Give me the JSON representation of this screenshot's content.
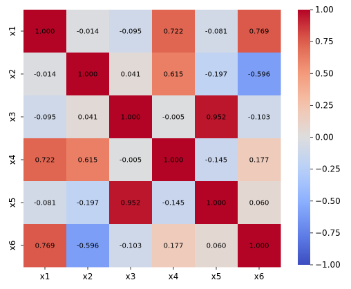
{
  "chart_data": {
    "type": "heatmap",
    "title": "",
    "xlabel": "",
    "ylabel": "",
    "x_categories": [
      "x1",
      "x2",
      "x3",
      "x4",
      "x5",
      "x6"
    ],
    "y_categories": [
      "x1",
      "x2",
      "x3",
      "x4",
      "x5",
      "x6"
    ],
    "values": [
      [
        1.0,
        -0.014,
        -0.095,
        0.722,
        -0.081,
        0.769
      ],
      [
        -0.014,
        1.0,
        0.041,
        0.615,
        -0.197,
        -0.596
      ],
      [
        -0.095,
        0.041,
        1.0,
        -0.005,
        0.952,
        -0.103
      ],
      [
        0.722,
        0.615,
        -0.005,
        1.0,
        -0.145,
        0.177
      ],
      [
        -0.081,
        -0.197,
        0.952,
        -0.145,
        1.0,
        0.06
      ],
      [
        0.769,
        -0.596,
        -0.103,
        0.177,
        0.06,
        1.0
      ]
    ],
    "value_format": "3 decimals",
    "colormap": "coolwarm",
    "vmin": -1.0,
    "vmax": 1.0,
    "colorbar": {
      "ticks": [
        1.0,
        0.75,
        0.5,
        0.25,
        0.0,
        -0.25,
        -0.5,
        -0.75,
        -1.0
      ],
      "tick_labels": [
        "1.00",
        "0.75",
        "0.50",
        "0.25",
        "0.00",
        "−0.25",
        "−0.50",
        "−0.75",
        "−1.00"
      ],
      "placement": "right"
    },
    "grid": false
  }
}
